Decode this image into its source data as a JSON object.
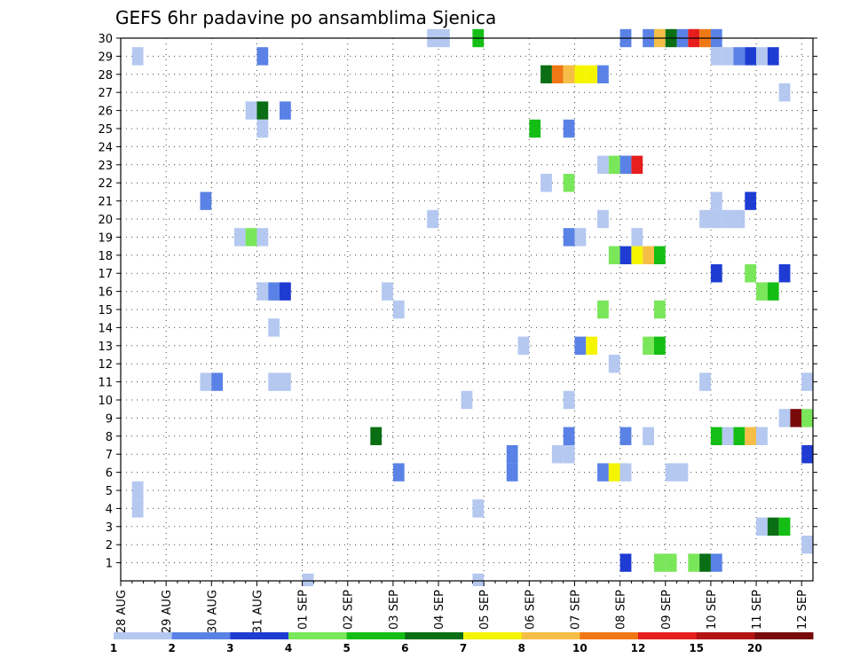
{
  "chart_data": {
    "type": "heatmap",
    "title": "GEFS 6hr padavine po ansamblima Sjenica",
    "x_tick_labels": [
      "28 AUG",
      "29 AUG",
      "30 AUG",
      "31 AUG",
      "01 SEP",
      "02 SEP",
      "03 SEP",
      "04 SEP",
      "05 SEP",
      "06 SEP",
      "07 SEP",
      "08 SEP",
      "09 SEP",
      "10 SEP",
      "11 SEP",
      "12 SEP"
    ],
    "x_range_days": [
      0,
      15.25
    ],
    "y_tick_labels": [
      "1",
      "2",
      "3",
      "4",
      "5",
      "6",
      "7",
      "8",
      "9",
      "10",
      "11",
      "12",
      "13",
      "14",
      "15",
      "16",
      "17",
      "18",
      "19",
      "20",
      "21",
      "22",
      "23",
      "24",
      "25",
      "26",
      "27",
      "28",
      "29",
      "30"
    ],
    "y_range": [
      0,
      30
    ],
    "grid": true,
    "colorbar": {
      "placement": "bottom",
      "levels": [
        "1",
        "2",
        "3",
        "4",
        "5",
        "6",
        "7",
        "8",
        "10",
        "12",
        "15",
        "20"
      ],
      "colors": [
        "#b4c8f0",
        "#5a82e6",
        "#1e3cd2",
        "#7ae65a",
        "#14be14",
        "#0a6e14",
        "#f5f500",
        "#f5be46",
        "#f07814",
        "#e61e1e",
        "#b41414",
        "#780a0a"
      ]
    },
    "cells_note": "each cell: [member, time_day_start (days since 28 AUG 00Z, width 0.25), color class 1-12]",
    "cells": [
      [
        30,
        6.75,
        1
      ],
      [
        30,
        7.0,
        1
      ],
      [
        30,
        7.75,
        5
      ],
      [
        30,
        11.0,
        2
      ],
      [
        30,
        11.5,
        2
      ],
      [
        30,
        11.75,
        8
      ],
      [
        30,
        12.0,
        6
      ],
      [
        30,
        12.25,
        2
      ],
      [
        30,
        12.5,
        10
      ],
      [
        30,
        12.75,
        9
      ],
      [
        30,
        13.0,
        2
      ],
      [
        29,
        0.25,
        1
      ],
      [
        29,
        3.0,
        2
      ],
      [
        29,
        13.0,
        1
      ],
      [
        29,
        13.25,
        1
      ],
      [
        29,
        13.5,
        2
      ],
      [
        29,
        13.75,
        3
      ],
      [
        29,
        14.0,
        1
      ],
      [
        29,
        14.25,
        3
      ],
      [
        28,
        9.25,
        6
      ],
      [
        28,
        9.5,
        9
      ],
      [
        28,
        9.75,
        8
      ],
      [
        28,
        10.0,
        7
      ],
      [
        28,
        10.25,
        7
      ],
      [
        28,
        10.5,
        2
      ],
      [
        27,
        14.5,
        1
      ],
      [
        26,
        2.75,
        1
      ],
      [
        26,
        3.0,
        6
      ],
      [
        26,
        3.5,
        2
      ],
      [
        25,
        3.0,
        1
      ],
      [
        25,
        9.0,
        5
      ],
      [
        25,
        9.75,
        2
      ],
      [
        23,
        10.5,
        1
      ],
      [
        23,
        10.75,
        4
      ],
      [
        23,
        11.0,
        2
      ],
      [
        23,
        11.25,
        10
      ],
      [
        22,
        9.25,
        1
      ],
      [
        22,
        9.75,
        4
      ],
      [
        21,
        1.75,
        2
      ],
      [
        21,
        13.0,
        1
      ],
      [
        21,
        13.75,
        3
      ],
      [
        20,
        6.75,
        1
      ],
      [
        20,
        10.5,
        1
      ],
      [
        20,
        12.75,
        1
      ],
      [
        20,
        13.0,
        1
      ],
      [
        20,
        13.25,
        1
      ],
      [
        20,
        13.5,
        1
      ],
      [
        19,
        9.75,
        2
      ],
      [
        19,
        10.0,
        1
      ],
      [
        19,
        2.5,
        1
      ],
      [
        19,
        2.75,
        4
      ],
      [
        19,
        3.0,
        1
      ],
      [
        19,
        11.25,
        1
      ],
      [
        18,
        10.75,
        4
      ],
      [
        18,
        11.0,
        3
      ],
      [
        18,
        11.25,
        7
      ],
      [
        18,
        11.5,
        8
      ],
      [
        18,
        11.75,
        5
      ],
      [
        17,
        13.0,
        3
      ],
      [
        17,
        13.75,
        4
      ],
      [
        17,
        14.5,
        3
      ],
      [
        16,
        3.0,
        1
      ],
      [
        16,
        3.25,
        2
      ],
      [
        16,
        3.5,
        3
      ],
      [
        16,
        5.75,
        1
      ],
      [
        16,
        14.0,
        4
      ],
      [
        16,
        14.25,
        5
      ],
      [
        15,
        6.0,
        1
      ],
      [
        15,
        10.5,
        4
      ],
      [
        15,
        11.75,
        4
      ],
      [
        14,
        3.25,
        1
      ],
      [
        13,
        8.75,
        1
      ],
      [
        13,
        10.0,
        2
      ],
      [
        13,
        10.25,
        7
      ],
      [
        13,
        11.5,
        4
      ],
      [
        13,
        11.75,
        5
      ],
      [
        12,
        10.75,
        1
      ],
      [
        11,
        1.75,
        1
      ],
      [
        11,
        2.0,
        2
      ],
      [
        11,
        3.25,
        1
      ],
      [
        11,
        3.5,
        1
      ],
      [
        11,
        12.75,
        1
      ],
      [
        11,
        15.0,
        1
      ],
      [
        10,
        7.5,
        1
      ],
      [
        10,
        9.75,
        1
      ],
      [
        9,
        14.5,
        1
      ],
      [
        9,
        14.75,
        12
      ],
      [
        9,
        15.0,
        4
      ],
      [
        8,
        5.5,
        6
      ],
      [
        8,
        9.75,
        2
      ],
      [
        8,
        11.0,
        2
      ],
      [
        8,
        11.5,
        1
      ],
      [
        8,
        13.0,
        5
      ],
      [
        8,
        13.25,
        1
      ],
      [
        8,
        13.5,
        5
      ],
      [
        8,
        13.75,
        8
      ],
      [
        8,
        14.0,
        1
      ],
      [
        7,
        8.5,
        2
      ],
      [
        7,
        9.5,
        1
      ],
      [
        7,
        9.75,
        1
      ],
      [
        7,
        15.0,
        3
      ],
      [
        6,
        6.0,
        2
      ],
      [
        6,
        8.5,
        2
      ],
      [
        6,
        10.5,
        2
      ],
      [
        6,
        10.75,
        7
      ],
      [
        6,
        11.0,
        1
      ],
      [
        6,
        12.0,
        1
      ],
      [
        6,
        12.25,
        1
      ],
      [
        5,
        0.25,
        1
      ],
      [
        4,
        0.25,
        1
      ],
      [
        4,
        7.75,
        1
      ],
      [
        3,
        14.0,
        1
      ],
      [
        3,
        14.25,
        6
      ],
      [
        3,
        14.5,
        5
      ],
      [
        2,
        15.0,
        1
      ],
      [
        1,
        11.0,
        3
      ],
      [
        1,
        11.75,
        4
      ],
      [
        1,
        12.0,
        4
      ],
      [
        1,
        12.5,
        4
      ],
      [
        1,
        12.75,
        6
      ],
      [
        1,
        13.0,
        2
      ]
    ],
    "below_axis_cells": [
      [
        4.0,
        1
      ],
      [
        7.75,
        1
      ]
    ]
  }
}
